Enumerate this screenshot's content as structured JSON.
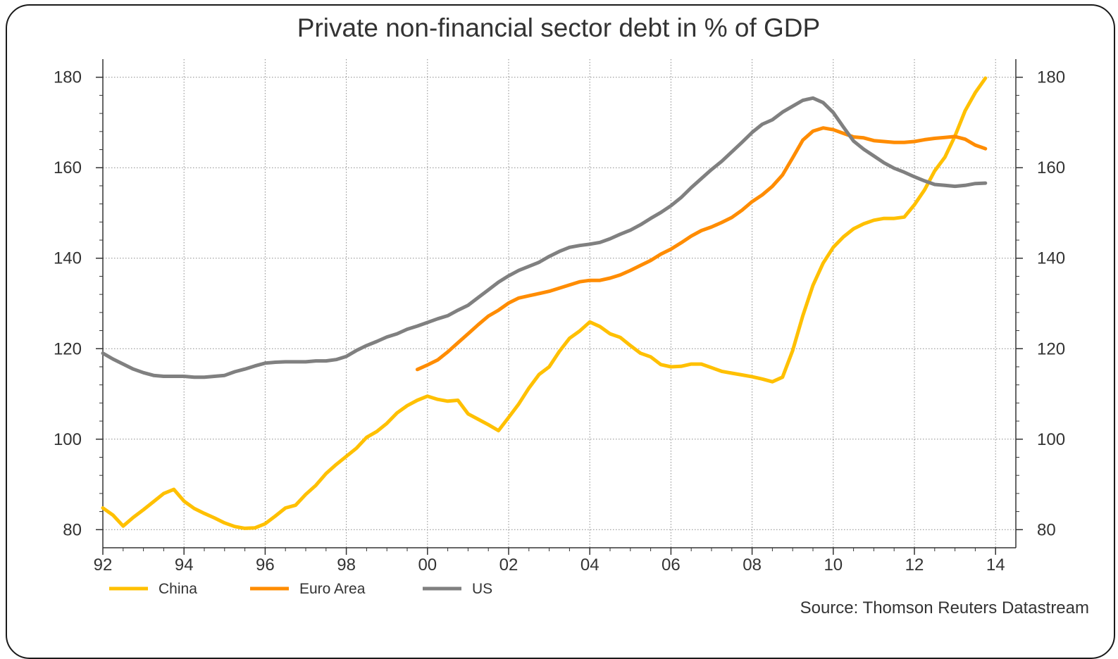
{
  "chart_data": {
    "type": "line",
    "title": "Private non-financial sector debt in % of GDP",
    "xlabel": "",
    "ylabel": "",
    "source": "Source: Thomson Reuters Datastream",
    "x_ticks": [
      "92",
      "94",
      "96",
      "98",
      "00",
      "02",
      "04",
      "06",
      "08",
      "10",
      "12",
      "14"
    ],
    "x_tick_values": [
      1992,
      1994,
      1996,
      1998,
      2000,
      2002,
      2004,
      2006,
      2008,
      2010,
      2012,
      2014
    ],
    "xlim": [
      1992,
      2014.5
    ],
    "y_ticks": [
      80,
      100,
      120,
      140,
      160,
      180
    ],
    "y_tick_labels": [
      "80",
      "100",
      "120",
      "140",
      "160",
      "180"
    ],
    "ylim": [
      76,
      184
    ],
    "grid": true,
    "legend_position": "bottom-left",
    "series": [
      {
        "name": "China",
        "color": "#FFC000",
        "points": [
          [
            1992.0,
            84.8
          ],
          [
            1992.25,
            83.2
          ],
          [
            1992.5,
            80.8
          ],
          [
            1992.75,
            82.7
          ],
          [
            1993.0,
            84.4
          ],
          [
            1993.25,
            86.2
          ],
          [
            1993.5,
            88.0
          ],
          [
            1993.75,
            88.9
          ],
          [
            1994.0,
            86.3
          ],
          [
            1994.25,
            84.7
          ],
          [
            1994.5,
            83.6
          ],
          [
            1994.75,
            82.6
          ],
          [
            1995.0,
            81.5
          ],
          [
            1995.25,
            80.7
          ],
          [
            1995.5,
            80.3
          ],
          [
            1995.75,
            80.4
          ],
          [
            1996.0,
            81.3
          ],
          [
            1996.25,
            83.0
          ],
          [
            1996.5,
            84.8
          ],
          [
            1996.75,
            85.4
          ],
          [
            1997.0,
            87.8
          ],
          [
            1997.25,
            89.8
          ],
          [
            1997.5,
            92.4
          ],
          [
            1997.75,
            94.4
          ],
          [
            1998.0,
            96.2
          ],
          [
            1998.25,
            98.0
          ],
          [
            1998.5,
            100.4
          ],
          [
            1998.75,
            101.7
          ],
          [
            1999.0,
            103.5
          ],
          [
            1999.25,
            105.8
          ],
          [
            1999.5,
            107.4
          ],
          [
            1999.75,
            108.6
          ],
          [
            2000.0,
            109.5
          ],
          [
            2000.25,
            108.8
          ],
          [
            2000.5,
            108.4
          ],
          [
            2000.75,
            108.6
          ],
          [
            2001.0,
            105.6
          ],
          [
            2001.25,
            104.4
          ],
          [
            2001.5,
            103.2
          ],
          [
            2001.75,
            101.9
          ],
          [
            2002.0,
            104.8
          ],
          [
            2002.25,
            107.8
          ],
          [
            2002.5,
            111.3
          ],
          [
            2002.75,
            114.3
          ],
          [
            2003.0,
            116.0
          ],
          [
            2003.25,
            119.4
          ],
          [
            2003.5,
            122.3
          ],
          [
            2003.75,
            123.9
          ],
          [
            2004.0,
            125.9
          ],
          [
            2004.25,
            124.9
          ],
          [
            2004.5,
            123.3
          ],
          [
            2004.75,
            122.5
          ],
          [
            2005.0,
            120.7
          ],
          [
            2005.25,
            119.0
          ],
          [
            2005.5,
            118.2
          ],
          [
            2005.75,
            116.5
          ],
          [
            2006.0,
            116.0
          ],
          [
            2006.25,
            116.1
          ],
          [
            2006.5,
            116.6
          ],
          [
            2006.75,
            116.6
          ],
          [
            2007.0,
            115.8
          ],
          [
            2007.25,
            115.0
          ],
          [
            2007.5,
            114.6
          ],
          [
            2007.75,
            114.2
          ],
          [
            2008.0,
            113.8
          ],
          [
            2008.25,
            113.3
          ],
          [
            2008.5,
            112.7
          ],
          [
            2008.75,
            113.7
          ],
          [
            2009.0,
            119.6
          ],
          [
            2009.25,
            127.3
          ],
          [
            2009.5,
            134.0
          ],
          [
            2009.75,
            138.9
          ],
          [
            2010.0,
            142.4
          ],
          [
            2010.25,
            144.7
          ],
          [
            2010.5,
            146.5
          ],
          [
            2010.75,
            147.6
          ],
          [
            2011.0,
            148.4
          ],
          [
            2011.25,
            148.8
          ],
          [
            2011.5,
            148.8
          ],
          [
            2011.75,
            149.1
          ],
          [
            2012.0,
            151.8
          ],
          [
            2012.25,
            155.1
          ],
          [
            2012.5,
            159.3
          ],
          [
            2012.75,
            162.3
          ],
          [
            2013.0,
            167.0
          ],
          [
            2013.25,
            172.6
          ],
          [
            2013.5,
            176.6
          ],
          [
            2013.75,
            179.8
          ]
        ]
      },
      {
        "name": "Euro Area",
        "color": "#FF8C00",
        "points": [
          [
            1999.75,
            115.4
          ],
          [
            2000.0,
            116.4
          ],
          [
            2000.25,
            117.5
          ],
          [
            2000.5,
            119.3
          ],
          [
            2000.75,
            121.3
          ],
          [
            2001.0,
            123.3
          ],
          [
            2001.25,
            125.3
          ],
          [
            2001.5,
            127.2
          ],
          [
            2001.75,
            128.5
          ],
          [
            2002.0,
            130.1
          ],
          [
            2002.25,
            131.2
          ],
          [
            2002.5,
            131.7
          ],
          [
            2002.75,
            132.2
          ],
          [
            2003.0,
            132.7
          ],
          [
            2003.25,
            133.4
          ],
          [
            2003.5,
            134.1
          ],
          [
            2003.75,
            134.8
          ],
          [
            2004.0,
            135.1
          ],
          [
            2004.25,
            135.1
          ],
          [
            2004.5,
            135.6
          ],
          [
            2004.75,
            136.3
          ],
          [
            2005.0,
            137.3
          ],
          [
            2005.25,
            138.4
          ],
          [
            2005.5,
            139.5
          ],
          [
            2005.75,
            140.9
          ],
          [
            2006.0,
            142.0
          ],
          [
            2006.25,
            143.4
          ],
          [
            2006.5,
            144.9
          ],
          [
            2006.75,
            146.1
          ],
          [
            2007.0,
            146.9
          ],
          [
            2007.25,
            147.9
          ],
          [
            2007.5,
            149.0
          ],
          [
            2007.75,
            150.6
          ],
          [
            2008.0,
            152.5
          ],
          [
            2008.25,
            154.0
          ],
          [
            2008.5,
            155.9
          ],
          [
            2008.75,
            158.4
          ],
          [
            2009.0,
            162.2
          ],
          [
            2009.25,
            166.1
          ],
          [
            2009.5,
            168.1
          ],
          [
            2009.75,
            168.8
          ],
          [
            2010.0,
            168.4
          ],
          [
            2010.25,
            167.6
          ],
          [
            2010.5,
            166.8
          ],
          [
            2010.75,
            166.6
          ],
          [
            2011.0,
            166.0
          ],
          [
            2011.25,
            165.8
          ],
          [
            2011.5,
            165.6
          ],
          [
            2011.75,
            165.6
          ],
          [
            2012.0,
            165.8
          ],
          [
            2012.25,
            166.2
          ],
          [
            2012.5,
            166.5
          ],
          [
            2012.75,
            166.7
          ],
          [
            2013.0,
            166.9
          ],
          [
            2013.25,
            166.3
          ],
          [
            2013.5,
            165.0
          ],
          [
            2013.75,
            164.2
          ]
        ]
      },
      {
        "name": "US",
        "color": "#808080",
        "points": [
          [
            1992.0,
            119.0
          ],
          [
            1992.25,
            117.7
          ],
          [
            1992.5,
            116.6
          ],
          [
            1992.75,
            115.5
          ],
          [
            1993.0,
            114.7
          ],
          [
            1993.25,
            114.1
          ],
          [
            1993.5,
            113.9
          ],
          [
            1993.75,
            113.9
          ],
          [
            1994.0,
            113.9
          ],
          [
            1994.25,
            113.7
          ],
          [
            1994.5,
            113.7
          ],
          [
            1994.75,
            113.9
          ],
          [
            1995.0,
            114.1
          ],
          [
            1995.25,
            114.9
          ],
          [
            1995.5,
            115.5
          ],
          [
            1995.75,
            116.2
          ],
          [
            1996.0,
            116.8
          ],
          [
            1996.25,
            117.0
          ],
          [
            1996.5,
            117.1
          ],
          [
            1996.75,
            117.1
          ],
          [
            1997.0,
            117.1
          ],
          [
            1997.25,
            117.3
          ],
          [
            1997.5,
            117.3
          ],
          [
            1997.75,
            117.6
          ],
          [
            1998.0,
            118.3
          ],
          [
            1998.25,
            119.6
          ],
          [
            1998.5,
            120.7
          ],
          [
            1998.75,
            121.6
          ],
          [
            1999.0,
            122.6
          ],
          [
            1999.25,
            123.3
          ],
          [
            1999.5,
            124.3
          ],
          [
            1999.75,
            125.0
          ],
          [
            2000.0,
            125.8
          ],
          [
            2000.25,
            126.6
          ],
          [
            2000.5,
            127.3
          ],
          [
            2000.75,
            128.5
          ],
          [
            2001.0,
            129.6
          ],
          [
            2001.25,
            131.3
          ],
          [
            2001.5,
            133.0
          ],
          [
            2001.75,
            134.7
          ],
          [
            2002.0,
            136.1
          ],
          [
            2002.25,
            137.3
          ],
          [
            2002.5,
            138.2
          ],
          [
            2002.75,
            139.1
          ],
          [
            2003.0,
            140.4
          ],
          [
            2003.25,
            141.5
          ],
          [
            2003.5,
            142.4
          ],
          [
            2003.75,
            142.8
          ],
          [
            2004.0,
            143.1
          ],
          [
            2004.25,
            143.5
          ],
          [
            2004.5,
            144.3
          ],
          [
            2004.75,
            145.3
          ],
          [
            2005.0,
            146.2
          ],
          [
            2005.25,
            147.4
          ],
          [
            2005.5,
            148.8
          ],
          [
            2005.75,
            150.1
          ],
          [
            2006.0,
            151.6
          ],
          [
            2006.25,
            153.4
          ],
          [
            2006.5,
            155.6
          ],
          [
            2006.75,
            157.6
          ],
          [
            2007.0,
            159.6
          ],
          [
            2007.25,
            161.4
          ],
          [
            2007.5,
            163.5
          ],
          [
            2007.75,
            165.6
          ],
          [
            2008.0,
            167.8
          ],
          [
            2008.25,
            169.6
          ],
          [
            2008.5,
            170.6
          ],
          [
            2008.75,
            172.3
          ],
          [
            2009.0,
            173.6
          ],
          [
            2009.25,
            174.9
          ],
          [
            2009.5,
            175.4
          ],
          [
            2009.75,
            174.4
          ],
          [
            2010.0,
            172.2
          ],
          [
            2010.25,
            169.0
          ],
          [
            2010.5,
            165.9
          ],
          [
            2010.75,
            164.1
          ],
          [
            2011.0,
            162.6
          ],
          [
            2011.25,
            161.1
          ],
          [
            2011.5,
            159.9
          ],
          [
            2011.75,
            159.0
          ],
          [
            2012.0,
            158.0
          ],
          [
            2012.25,
            157.1
          ],
          [
            2012.5,
            156.3
          ],
          [
            2012.75,
            156.1
          ],
          [
            2013.0,
            155.9
          ],
          [
            2013.25,
            156.1
          ],
          [
            2013.5,
            156.5
          ],
          [
            2013.75,
            156.6
          ]
        ]
      }
    ]
  }
}
